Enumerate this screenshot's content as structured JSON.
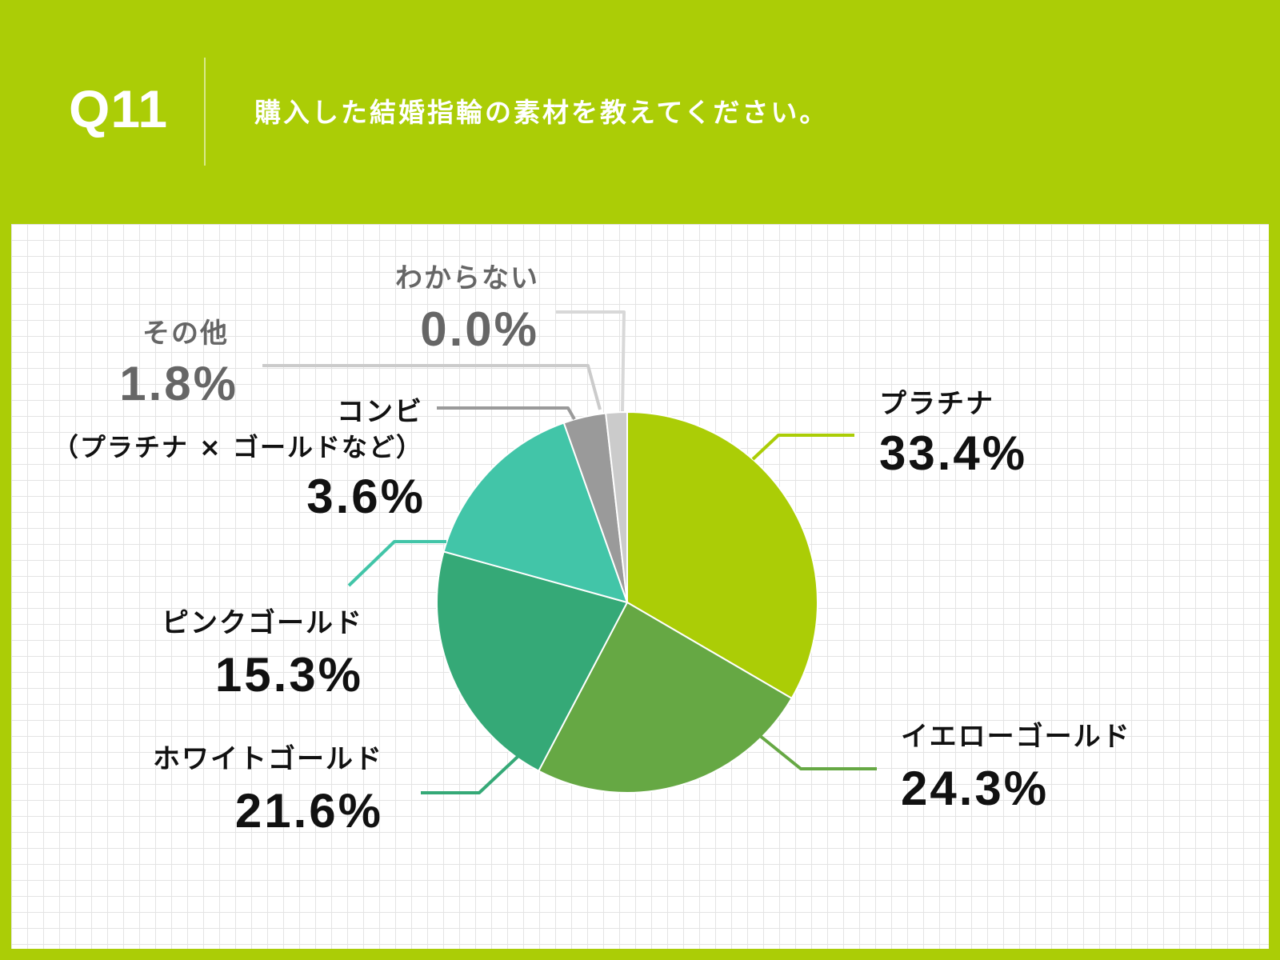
{
  "question": {
    "number": "Q11",
    "text": "購入した結婚指輪の素材を教えてください。"
  },
  "colors": {
    "header_bg": "#abcd06",
    "panel_bg": "#ffffff"
  },
  "chart_data": {
    "type": "pie",
    "start_angle_deg": 0,
    "direction": "clockwise",
    "slices": [
      {
        "label": "プラチナ",
        "sublabel": "",
        "value": 33.4,
        "value_label": "33.4%",
        "color": "#abcd06",
        "label_color": "#111111"
      },
      {
        "label": "イエローゴールド",
        "sublabel": "",
        "value": 24.3,
        "value_label": "24.3%",
        "color": "#66a844",
        "label_color": "#111111"
      },
      {
        "label": "ホワイトゴールド",
        "sublabel": "",
        "value": 21.6,
        "value_label": "21.6%",
        "color": "#35a977",
        "label_color": "#111111"
      },
      {
        "label": "ピンクゴールド",
        "sublabel": "",
        "value": 15.3,
        "value_label": "15.3%",
        "color": "#42c5a8",
        "label_color": "#111111"
      },
      {
        "label": "コンビ",
        "sublabel": "（プラチナ × ゴールドなど）",
        "value": 3.6,
        "value_label": "3.6%",
        "color": "#9a9a9a",
        "label_color": "#111111"
      },
      {
        "label": "その他",
        "sublabel": "",
        "value": 1.8,
        "value_label": "1.8%",
        "color": "#cbcbcb",
        "label_color": "#666666"
      },
      {
        "label": "わからない",
        "sublabel": "",
        "value": 0.0,
        "value_label": "0.0%",
        "color": "#d8d8d8",
        "label_color": "#666666"
      }
    ]
  }
}
